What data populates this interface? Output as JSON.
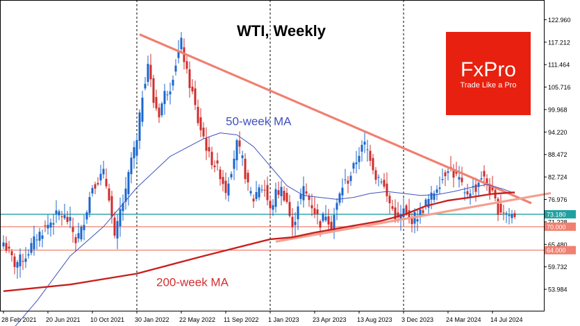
{
  "chart_data": {
    "type": "candlestick",
    "title": "WTI, Weekly",
    "y_ticks": [
      "122.960",
      "117.212",
      "111.464",
      "105.716",
      "99.968",
      "94.220",
      "88.472",
      "82.724",
      "76.976",
      "71.228",
      "65.480",
      "59.732",
      "53.984"
    ],
    "y_tick_values": [
      122.96,
      117.212,
      111.464,
      105.716,
      99.968,
      94.22,
      88.472,
      82.724,
      76.976,
      71.228,
      65.48,
      59.732,
      53.984
    ],
    "ylim": [
      48.5,
      128.0
    ],
    "x_ticks": [
      "28 Feb 2021",
      "20 Jun 2021",
      "10 Oct 2021",
      "30 Jan 2022",
      "22 May 2022",
      "11 Sep 2022",
      "1 Jan 2023",
      "23 Apr 2023",
      "13 Aug 2023",
      "3 Dec 2023",
      "24 Mar 2024",
      "14 Jul 2024"
    ],
    "x_tick_weeks": [
      0,
      16,
      32,
      48,
      64,
      80,
      96,
      112,
      128,
      144,
      160,
      176
    ],
    "vertical_gridlines_at_weeks": [
      48,
      96,
      144
    ],
    "weeks_total": 185,
    "price_levels": [
      {
        "label": "73.180",
        "value": 73.18,
        "color": "#20a0a0"
      },
      {
        "label": "70.000",
        "value": 70.0,
        "color": "#f08070"
      },
      {
        "label": "64.000",
        "value": 64.0,
        "color": "#f08070"
      }
    ],
    "close_series": [
      [
        0,
        66.0
      ],
      [
        4,
        60.5
      ],
      [
        8,
        62.5
      ],
      [
        12,
        67.5
      ],
      [
        16,
        70.5
      ],
      [
        20,
        73.5
      ],
      [
        24,
        71.0
      ],
      [
        26,
        66.5
      ],
      [
        28,
        69.0
      ],
      [
        32,
        80.5
      ],
      [
        36,
        83.5
      ],
      [
        38,
        78.0
      ],
      [
        40,
        66.5
      ],
      [
        42,
        74.0
      ],
      [
        44,
        78.5
      ],
      [
        46,
        87.5
      ],
      [
        48,
        91.5
      ],
      [
        50,
        104.0
      ],
      [
        52,
        112.0
      ],
      [
        54,
        102.0
      ],
      [
        56,
        99.0
      ],
      [
        58,
        104.0
      ],
      [
        60,
        106.0
      ],
      [
        62,
        112.0
      ],
      [
        64,
        117.0
      ],
      [
        66,
        109.0
      ],
      [
        68,
        104.0
      ],
      [
        70,
        97.0
      ],
      [
        72,
        93.0
      ],
      [
        74,
        88.0
      ],
      [
        76,
        86.0
      ],
      [
        78,
        83.5
      ],
      [
        80,
        79.5
      ],
      [
        82,
        85.0
      ],
      [
        84,
        91.0
      ],
      [
        86,
        87.0
      ],
      [
        88,
        80.0
      ],
      [
        90,
        77.0
      ],
      [
        92,
        80.5
      ],
      [
        94,
        79.5
      ],
      [
        96,
        74.0
      ],
      [
        98,
        78.5
      ],
      [
        100,
        79.5
      ],
      [
        102,
        76.5
      ],
      [
        104,
        69.0
      ],
      [
        106,
        76.0
      ],
      [
        108,
        79.5
      ],
      [
        110,
        77.0
      ],
      [
        112,
        74.0
      ],
      [
        114,
        71.0
      ],
      [
        116,
        73.5
      ],
      [
        118,
        70.5
      ],
      [
        120,
        75.5
      ],
      [
        122,
        80.5
      ],
      [
        124,
        82.0
      ],
      [
        126,
        85.0
      ],
      [
        128,
        89.0
      ],
      [
        130,
        91.0
      ],
      [
        132,
        88.0
      ],
      [
        134,
        83.0
      ],
      [
        136,
        82.5
      ],
      [
        138,
        77.5
      ],
      [
        140,
        74.5
      ],
      [
        142,
        71.5
      ],
      [
        144,
        74.0
      ],
      [
        146,
        71.5
      ],
      [
        148,
        72.5
      ],
      [
        150,
        73.5
      ],
      [
        152,
        76.0
      ],
      [
        154,
        77.5
      ],
      [
        156,
        80.5
      ],
      [
        158,
        82.5
      ],
      [
        160,
        85.5
      ],
      [
        162,
        83.5
      ],
      [
        164,
        82.0
      ],
      [
        166,
        78.0
      ],
      [
        168,
        79.5
      ],
      [
        170,
        80.0
      ],
      [
        172,
        83.0
      ],
      [
        174,
        81.0
      ],
      [
        176,
        78.0
      ],
      [
        178,
        74.5
      ],
      [
        180,
        74.0
      ],
      [
        182,
        73.0
      ],
      [
        184,
        73.2
      ]
    ],
    "ma50": [
      [
        0,
        41.0
      ],
      [
        12,
        51.0
      ],
      [
        24,
        62.5
      ],
      [
        36,
        70.0
      ],
      [
        48,
        80.0
      ],
      [
        60,
        88.0
      ],
      [
        72,
        92.5
      ],
      [
        78,
        94.0
      ],
      [
        84,
        93.5
      ],
      [
        90,
        90.5
      ],
      [
        96,
        85.5
      ],
      [
        102,
        80.5
      ],
      [
        108,
        78.0
      ],
      [
        114,
        77.5
      ],
      [
        120,
        77.0
      ],
      [
        126,
        77.5
      ],
      [
        132,
        78.5
      ],
      [
        138,
        79.0
      ],
      [
        144,
        78.5
      ],
      [
        150,
        78.0
      ],
      [
        156,
        78.2
      ],
      [
        162,
        79.0
      ],
      [
        168,
        80.0
      ],
      [
        174,
        80.8
      ],
      [
        180,
        79.6
      ],
      [
        184,
        78.5
      ]
    ],
    "ma200": [
      [
        0,
        53.5
      ],
      [
        24,
        55.2
      ],
      [
        48,
        58.0
      ],
      [
        72,
        62.5
      ],
      [
        96,
        66.8
      ],
      [
        104,
        67.3
      ],
      [
        112,
        68.5
      ],
      [
        124,
        70.0
      ],
      [
        136,
        71.5
      ],
      [
        144,
        73.0
      ],
      [
        152,
        75.3
      ],
      [
        160,
        76.7
      ],
      [
        168,
        77.5
      ],
      [
        176,
        78.4
      ],
      [
        184,
        78.8
      ]
    ],
    "trendlines": [
      {
        "points": [
          [
            49,
            119.2
          ],
          [
            190,
            76.0
          ]
        ],
        "color": "#f08070"
      },
      {
        "points": [
          [
            98,
            66.2
          ],
          [
            197,
            78.6
          ]
        ],
        "color": "#f4a090"
      }
    ],
    "annotations": [
      {
        "text": "50-week MA",
        "at": [
          80,
          96.0
        ],
        "color": "#4050c0"
      },
      {
        "text": "200-week MA",
        "at": [
          55,
          54.8
        ],
        "color": "#d03030"
      }
    ]
  },
  "brand": {
    "name": "FxPro",
    "tagline": "Trade Like a Pro",
    "bg_color": "#e8200f"
  },
  "colors": {
    "bull": "#1a66cc",
    "bear": "#d02c2c",
    "ma50": "#4050c0",
    "ma200": "#c81f1f"
  }
}
